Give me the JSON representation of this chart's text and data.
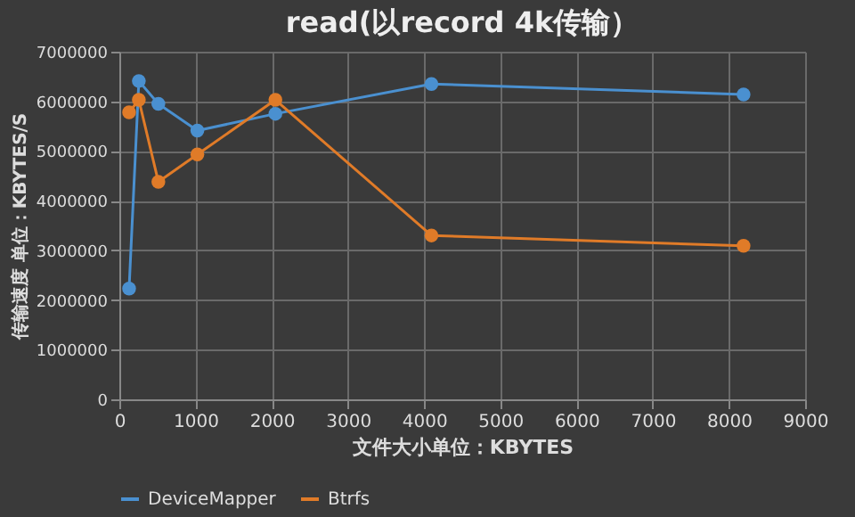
{
  "chart_data": {
    "type": "line",
    "title": "read(以record 4k传输）",
    "xlabel": "文件大小单位：KBYTES",
    "ylabel": "传输速度 单位：KBYTES/S",
    "x": [
      128,
      256,
      512,
      1024,
      2048,
      4096,
      8192
    ],
    "series": [
      {
        "name": "DeviceMapper",
        "color": "#4a90d0",
        "values": [
          2230000,
          6410000,
          5950000,
          5410000,
          5750000,
          6350000,
          6140000
        ]
      },
      {
        "name": "Btrfs",
        "color": "#e07b28",
        "values": [
          5780000,
          6030000,
          4380000,
          4930000,
          6030000,
          3300000,
          3090000
        ]
      }
    ],
    "xlim": [
      0,
      9000
    ],
    "xticks": [
      0,
      1000,
      2000,
      3000,
      4000,
      5000,
      6000,
      7000,
      8000,
      9000
    ],
    "ylim": [
      0,
      7000000
    ],
    "yticks": [
      0,
      1000000,
      2000000,
      3000000,
      4000000,
      5000000,
      6000000,
      7000000
    ],
    "grid": true,
    "legend": "bottom",
    "marker": "circle",
    "line_style": "solid"
  }
}
